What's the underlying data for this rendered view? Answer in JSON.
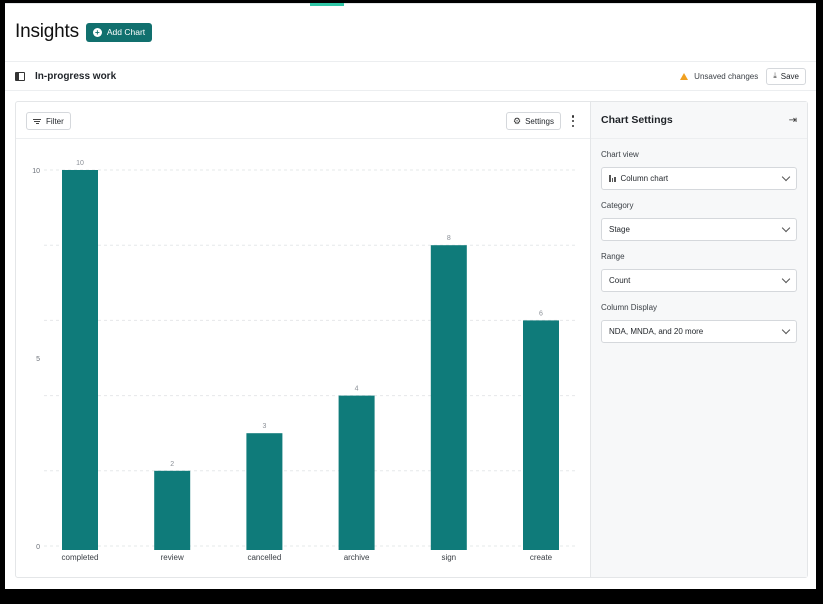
{
  "header": {
    "title": "Insights",
    "add_chart_label": "Add Chart"
  },
  "subbar": {
    "title": "In-progress work",
    "unsaved_label": "Unsaved changes",
    "save_label": "Save"
  },
  "toolbar": {
    "filter_label": "Filter",
    "settings_label": "Settings"
  },
  "colors": {
    "bar": "#0f7b7a",
    "accent": "#11706e",
    "warning": "#f0a020"
  },
  "settings_panel": {
    "title": "Chart Settings",
    "fields": [
      {
        "label": "Chart view",
        "value": "Column chart",
        "icon": "column-chart-icon"
      },
      {
        "label": "Category",
        "value": "Stage"
      },
      {
        "label": "Range",
        "value": "Count"
      },
      {
        "label": "Column Display",
        "value": "NDA, MNDA, and 20 more"
      }
    ]
  },
  "chart_data": {
    "type": "bar",
    "categories": [
      "completed",
      "review",
      "cancelled",
      "archive",
      "sign",
      "create"
    ],
    "values": [
      10,
      2,
      3,
      4,
      8,
      6
    ],
    "data_labels": [
      "10",
      "2",
      "3",
      "4",
      "8",
      "6"
    ],
    "yticks": [
      "10",
      "5",
      "0"
    ],
    "ylim": [
      0,
      10
    ],
    "grid": true,
    "legend": "none"
  }
}
